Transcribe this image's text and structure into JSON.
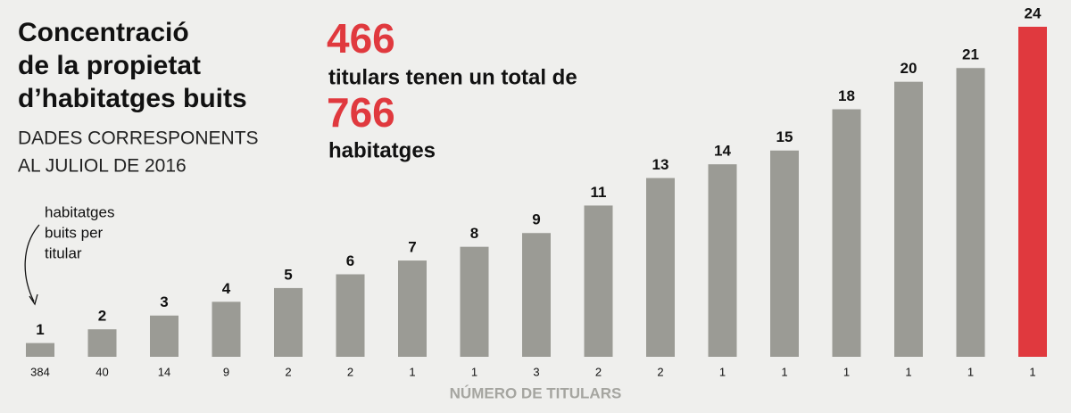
{
  "chart_data": {
    "type": "bar",
    "title": [
      "Concentració",
      "de la propietat",
      "d’habitatges buits"
    ],
    "subtitle": [
      "DADES CORRESPONENTS",
      "AL JULIOL DE 2016"
    ],
    "annotations": {
      "highlight": [
        "466",
        "titulars tenen un total de",
        "766",
        "habitatges"
      ],
      "bar_note": [
        "habitatges",
        "buits per",
        "titular"
      ]
    },
    "x_label": "NÚMERO DE TITULARS",
    "categories": [
      "384",
      "40",
      "14",
      "9",
      "2",
      "2",
      "1",
      "1",
      "3",
      "2",
      "2",
      "1",
      "1",
      "1",
      "1",
      "1",
      "1"
    ],
    "values": [
      1,
      2,
      3,
      4,
      5,
      6,
      7,
      8,
      9,
      11,
      13,
      14,
      15,
      18,
      20,
      21,
      24
    ],
    "colors": [
      "#9b9b95",
      "#9b9b95",
      "#9b9b95",
      "#9b9b95",
      "#9b9b95",
      "#9b9b95",
      "#9b9b95",
      "#9b9b95",
      "#9b9b95",
      "#9b9b95",
      "#9b9b95",
      "#9b9b95",
      "#9b9b95",
      "#9b9b95",
      "#9b9b95",
      "#9b9b95",
      "#e0393e"
    ]
  }
}
